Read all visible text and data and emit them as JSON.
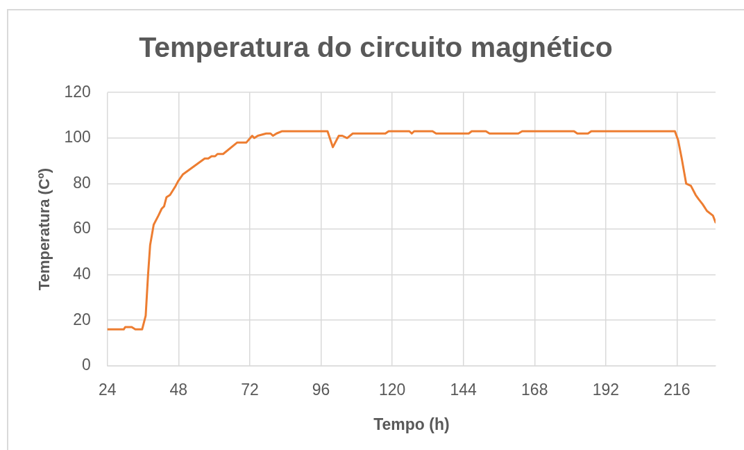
{
  "chart_data": {
    "type": "line",
    "title": "Temperatura do circuito magnético",
    "xlabel": "Tempo (h)",
    "ylabel": "Temperatura (Cº)",
    "x": [
      24,
      29.5,
      30,
      32.2,
      33.4,
      35.7,
      36.9,
      37.7,
      38.4,
      39.6,
      41.2,
      42.3,
      43.1,
      43.9,
      45.1,
      47,
      47.8,
      49.4,
      56.8,
      58,
      59.1,
      60.3,
      61.1,
      63,
      67.7,
      70.8,
      72.8,
      73.5,
      74.7,
      77.5,
      79,
      79.8,
      81,
      82.9,
      98.2,
      100,
      102,
      103.2,
      104.8,
      106.7,
      117.7,
      118.8,
      125.8,
      126.6,
      127.4,
      133.6,
      134.8,
      145.8,
      146.8,
      151.6,
      152.8,
      162.5,
      163.8,
      181.3,
      182.4,
      186,
      187.1,
      215.3,
      216.4,
      217.6,
      219.1,
      220.7,
      222.3,
      223.4,
      224.6,
      226.1,
      228.1,
      229
    ],
    "values": [
      16,
      16,
      17,
      17,
      16,
      16,
      22,
      40,
      53,
      62,
      66,
      69,
      70,
      74,
      75,
      79,
      81,
      84,
      91,
      91,
      92,
      92,
      93,
      93,
      98,
      98,
      101,
      100,
      101,
      102,
      102,
      101,
      102,
      103,
      103,
      96,
      101,
      101,
      100,
      102,
      102,
      103,
      103,
      102,
      103,
      103,
      102,
      102,
      103,
      103,
      102,
      102,
      103,
      103,
      102,
      102,
      103,
      103,
      99,
      91,
      80,
      79,
      75,
      73,
      71,
      68,
      66,
      63
    ],
    "color": "#ed7d31",
    "xlim": [
      24,
      229
    ],
    "xticks": [
      24,
      48,
      72,
      96,
      120,
      144,
      168,
      192,
      216
    ],
    "ylim": [
      0,
      120
    ],
    "yticks": [
      0,
      20,
      40,
      60,
      80,
      100,
      120
    ],
    "grid": true,
    "marker": "none"
  }
}
